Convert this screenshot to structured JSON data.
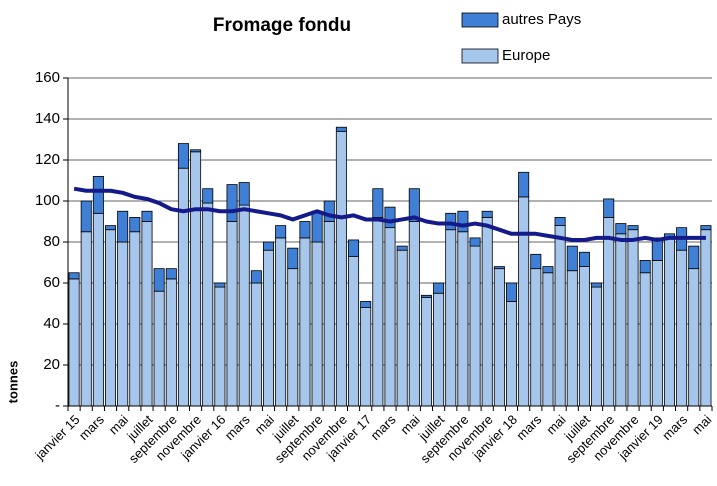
{
  "chart_data": {
    "type": "bar",
    "stacked": true,
    "title": "Fromage fondu",
    "y_label": "tonnes",
    "categories": [
      "janvier 15",
      null,
      "mars",
      null,
      "mai",
      null,
      "juillet",
      null,
      "septembre",
      null,
      "novembre",
      null,
      "janvier 16",
      null,
      "mars",
      null,
      "mai",
      null,
      "juillet",
      null,
      "septembre",
      null,
      "novembre",
      null,
      "janvier 17",
      null,
      "mars",
      null,
      "mai",
      null,
      "juillet",
      null,
      "septembre",
      null,
      "novembre",
      null,
      "janvier 18",
      null,
      "mars",
      null,
      "mai",
      null,
      "juillet",
      null,
      "septembre",
      null,
      "novembre",
      null,
      "janvier 19",
      null,
      "mars",
      null,
      "mai"
    ],
    "series": [
      {
        "name": "autres Pays",
        "color": "#3f80d6",
        "values": [
          3,
          15,
          18,
          2,
          15,
          7,
          5,
          11,
          5,
          12,
          1,
          7,
          2,
          18,
          11,
          6,
          4,
          6,
          10,
          8,
          15,
          10,
          2,
          8,
          3,
          14,
          10,
          2,
          16,
          1,
          5,
          8,
          10,
          4,
          3,
          1,
          9,
          12,
          7,
          3,
          4,
          12,
          7,
          2,
          9,
          5,
          2,
          6,
          11,
          2,
          11,
          11,
          2
        ]
      },
      {
        "name": "Europe",
        "color": "#a7c6ec",
        "values": [
          62,
          85,
          94,
          86,
          80,
          85,
          90,
          56,
          62,
          116,
          124,
          99,
          58,
          90,
          98,
          60,
          76,
          82,
          67,
          82,
          80,
          90,
          134,
          73,
          48,
          92,
          87,
          76,
          90,
          53,
          55,
          86,
          85,
          78,
          92,
          67,
          51,
          102,
          67,
          65,
          88,
          66,
          68,
          58,
          92,
          84,
          86,
          65,
          71,
          82,
          76,
          67,
          86
        ]
      },
      {
        "type": "line",
        "color": "#151a8a",
        "values": [
          106,
          105,
          105,
          105,
          104,
          102,
          101,
          99,
          96,
          95,
          96,
          96,
          95,
          95,
          96,
          95,
          94,
          93,
          91,
          93,
          95,
          93,
          92,
          93,
          91,
          91,
          90,
          91,
          92,
          90,
          89,
          89,
          88,
          89,
          88,
          86,
          84,
          84,
          84,
          83,
          82,
          81,
          81,
          82,
          82,
          81,
          81,
          82,
          81,
          82,
          82,
          82,
          82
        ]
      }
    ],
    "ylim": [
      0,
      160
    ],
    "yticks": [
      {
        "value": 0,
        "label": "-"
      },
      20,
      40,
      60,
      80,
      100,
      120,
      140,
      160
    ],
    "grid": true,
    "legend": "top-right"
  }
}
